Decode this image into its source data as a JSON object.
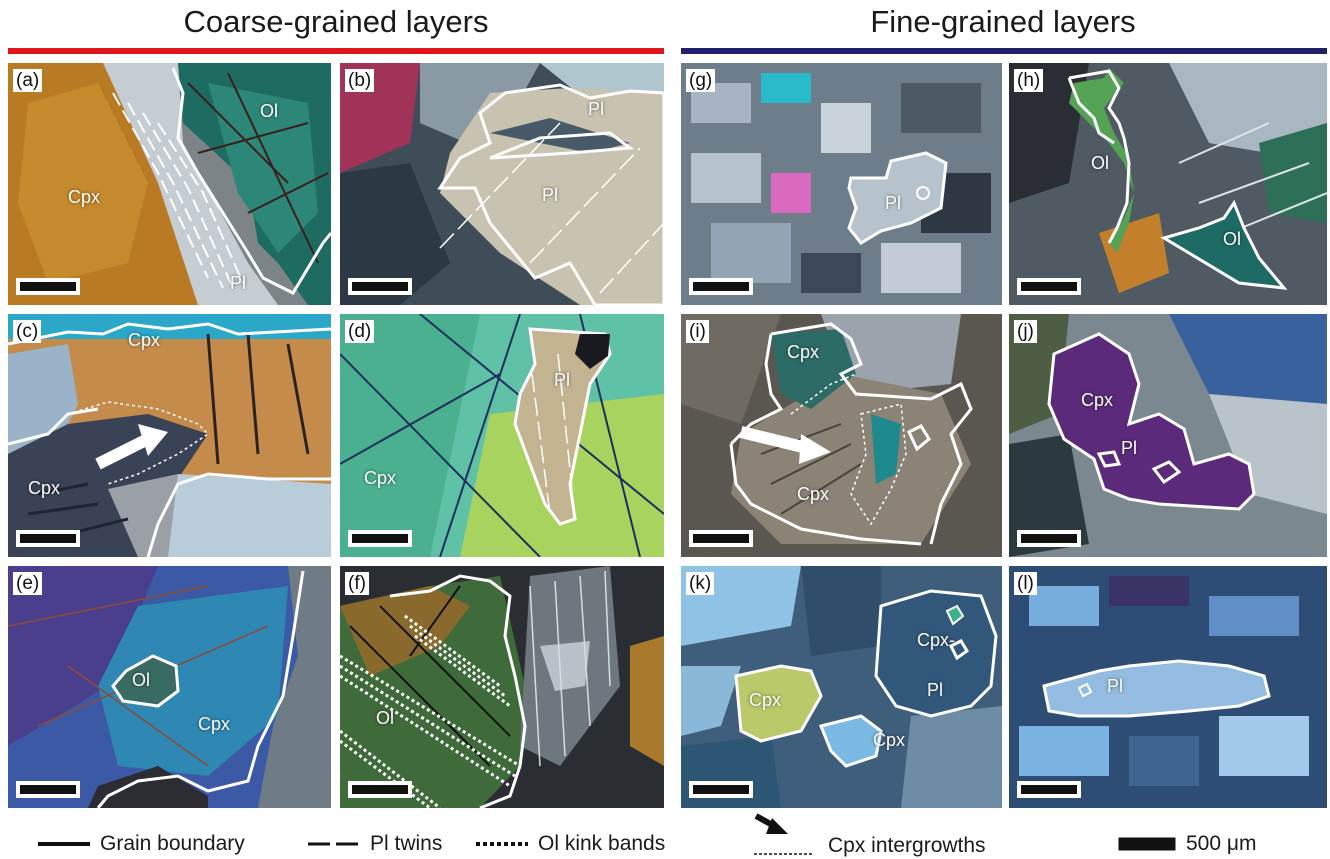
{
  "headers": {
    "left": "Coarse-grained layers",
    "right": "Fine-grained layers"
  },
  "colors": {
    "coarse_rule": "#e0141b",
    "fine_rule": "#22206a"
  },
  "panels": {
    "a": {
      "label": "(a)",
      "minerals": {
        "ol": "Ol",
        "cpx": "Cpx",
        "pl": "Pl"
      }
    },
    "b": {
      "label": "(b)",
      "minerals": {
        "pl_top": "Pl",
        "pl_main": "Pl"
      }
    },
    "c": {
      "label": "(c)",
      "minerals": {
        "cpx_top": "Cpx",
        "cpx_bottom": "Cpx"
      }
    },
    "d": {
      "label": "(d)",
      "minerals": {
        "pl": "Pl",
        "cpx": "Cpx"
      }
    },
    "e": {
      "label": "(e)",
      "minerals": {
        "ol": "Ol",
        "cpx": "Cpx"
      }
    },
    "f": {
      "label": "(f)",
      "minerals": {
        "ol": "Ol"
      }
    },
    "g": {
      "label": "(g)",
      "minerals": {
        "pl": "Pl"
      }
    },
    "h": {
      "label": "(h)",
      "minerals": {
        "ol_top": "Ol",
        "ol_bottom": "Ol"
      }
    },
    "i": {
      "label": "(i)",
      "minerals": {
        "cpx_top": "Cpx",
        "cpx_bottom": "Cpx"
      }
    },
    "j": {
      "label": "(j)",
      "minerals": {
        "cpx": "Cpx",
        "pl": "Pl"
      }
    },
    "k": {
      "label": "(k)",
      "minerals": {
        "cpx_right": "Cpx-",
        "cpx_left": "Cpx",
        "pl": "Pl",
        "cpx_bottom": "Cpx"
      }
    },
    "l": {
      "label": "(l)",
      "minerals": {
        "pl": "Pl"
      }
    }
  },
  "legend": {
    "grain_boundary": "Grain boundary",
    "pl_twins": "Pl twins",
    "ol_kink_bands": "Ol kink bands",
    "cpx_intergrowths": "Cpx intergrowths",
    "scale": "500 μm"
  }
}
